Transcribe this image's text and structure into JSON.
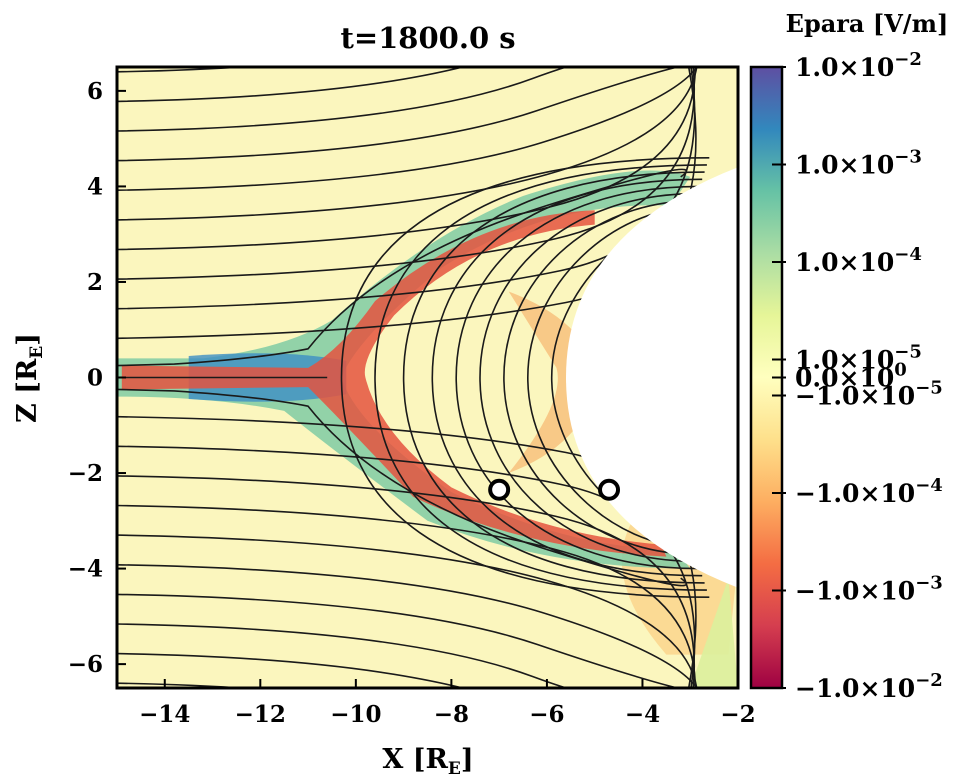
{
  "chart_data": {
    "type": "heatmap",
    "title": "t=1800.0 s",
    "xlabel": "X [R",
    "xlabel_sub": "E",
    "ylabel": "Z [R",
    "ylabel_sub": "E",
    "xlim": [
      -15,
      -2
    ],
    "ylim": [
      -6.5,
      6.5
    ],
    "xticks": [
      {
        "value": -14,
        "label": "−14"
      },
      {
        "value": -12,
        "label": "−12"
      },
      {
        "value": -10,
        "label": "−10"
      },
      {
        "value": -8,
        "label": "−8"
      },
      {
        "value": -6,
        "label": "−6"
      },
      {
        "value": -4,
        "label": "−4"
      },
      {
        "value": -2,
        "label": "−2"
      }
    ],
    "yticks": [
      {
        "value": 6,
        "label": "6"
      },
      {
        "value": 4,
        "label": "4"
      },
      {
        "value": 2,
        "label": "2"
      },
      {
        "value": 0,
        "label": "0"
      },
      {
        "value": -2,
        "label": "−2"
      },
      {
        "value": -4,
        "label": "−4"
      },
      {
        "value": -6,
        "label": "−6"
      }
    ],
    "markers": [
      {
        "x": -7.0,
        "y": -2.35
      },
      {
        "x": -4.7,
        "y": -2.35
      }
    ],
    "colorbar": {
      "title": "Epara [V/m]",
      "scale": "symlog",
      "ticks": [
        {
          "level": 1.0,
          "mantissa": "1.0",
          "exp": "−2"
        },
        {
          "level": 0.843,
          "mantissa": "1.0",
          "exp": "−3"
        },
        {
          "level": 0.686,
          "mantissa": "1.0",
          "exp": "−4"
        },
        {
          "level": 0.529,
          "mantissa": "1.0",
          "exp": "−5"
        },
        {
          "level": 0.5,
          "mantissa": "0.0",
          "exp": "0"
        },
        {
          "level": 0.471,
          "mantissa": "−1.0",
          "exp": "−5"
        },
        {
          "level": 0.314,
          "mantissa": "−1.0",
          "exp": "−4"
        },
        {
          "level": 0.157,
          "mantissa": "−1.0",
          "exp": "−3"
        },
        {
          "level": 0.0,
          "mantissa": "−1.0",
          "exp": "−2"
        }
      ],
      "colors": [
        "#9e0142",
        "#d53e4f",
        "#f46d43",
        "#fdae61",
        "#fee08b",
        "#ffffbf",
        "#e6f598",
        "#abdda4",
        "#66c2a5",
        "#3288bd",
        "#5e4fa2"
      ]
    }
  }
}
